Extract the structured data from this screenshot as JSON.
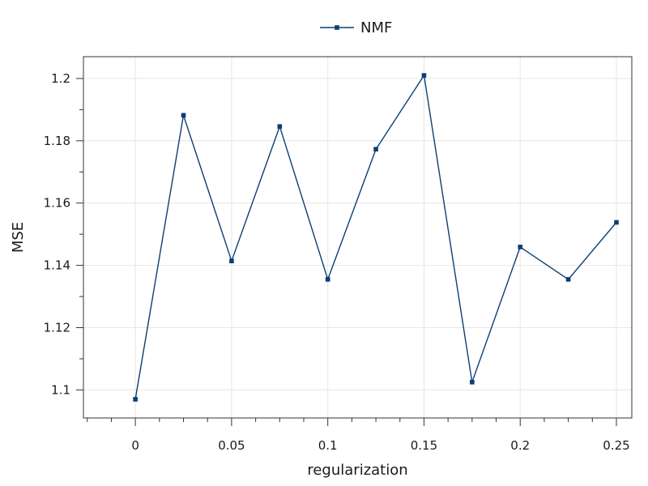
{
  "chart_data": {
    "type": "line",
    "title": "",
    "xlabel": "regularization",
    "ylabel": "MSE",
    "xlim": [
      -0.027,
      0.258
    ],
    "ylim": [
      1.091,
      1.207
    ],
    "x_ticks": [
      0,
      0.05,
      0.1,
      0.15,
      0.2,
      0.25
    ],
    "x_tick_labels": [
      "0",
      "0.05",
      "0.1",
      "0.15",
      "0.2",
      "0.25"
    ],
    "y_ticks": [
      1.1,
      1.12,
      1.14,
      1.16,
      1.18,
      1.2
    ],
    "y_tick_labels": [
      "1.1",
      "1.12",
      "1.14",
      "1.16",
      "1.18",
      "1.2"
    ],
    "grid": true,
    "legend_position": "top-center",
    "x": [
      0,
      0.025,
      0.05,
      0.075,
      0.1,
      0.125,
      0.15,
      0.175,
      0.2,
      0.225,
      0.25
    ],
    "series": [
      {
        "name": "NMF",
        "color": "#0b3e73",
        "marker": "square",
        "values": [
          1.097,
          1.1882,
          1.1414,
          1.1846,
          1.1355,
          1.1773,
          1.201,
          1.1025,
          1.1459,
          1.1355,
          1.1538
        ]
      }
    ]
  }
}
